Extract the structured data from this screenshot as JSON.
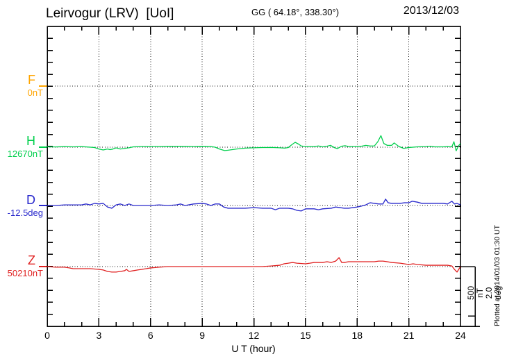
{
  "chart_data": {
    "type": "line",
    "title": "Leirvogur (LRV)  [UoI]",
    "coords": "GG ( 64.18°, 338.30°)",
    "date": "2013/12/03",
    "xlabel": "U T (hour)",
    "x_range": [
      0,
      24
    ],
    "x_ticks": [
      0,
      3,
      6,
      9,
      12,
      15,
      18,
      21,
      24
    ],
    "grid": "dotted vertical every 3 h, dotted horizontal at each component baseline",
    "scale": {
      "nT_per_div": 500,
      "deg_per_div": 2.0,
      "bar_label": "500 nT\n2.0 deg"
    },
    "footer": "Plotted at 2014/01/03 01:30 UT",
    "series": [
      {
        "name": "F",
        "unit": "nT",
        "base_value": "0nT",
        "color": "#FFA500",
        "x": [],
        "y": []
      },
      {
        "name": "H",
        "unit": "nT",
        "base_value": "12670nT",
        "color": "#00CF4C",
        "x": [
          0,
          0.5,
          1,
          1.5,
          2,
          2.5,
          2.75,
          3,
          3.25,
          3.5,
          3.65,
          3.8,
          4,
          4.25,
          4.5,
          4.75,
          5,
          5.5,
          6,
          6.5,
          7,
          7.5,
          8,
          8.5,
          9,
          9.5,
          9.75,
          10,
          10.3,
          10.5,
          10.75,
          11,
          11.5,
          12,
          12.5,
          13,
          13.5,
          13.8,
          14,
          14.2,
          14.4,
          14.6,
          14.75,
          15,
          15.5,
          15.75,
          16,
          16.25,
          16.45,
          16.7,
          16.85,
          17.1,
          17.3,
          17.5,
          18,
          18.25,
          18.5,
          18.75,
          19,
          19.2,
          19.38,
          19.55,
          19.75,
          20,
          20.15,
          20.4,
          20.7,
          21,
          21.5,
          22,
          22.25,
          22.5,
          23,
          23.25,
          23.5,
          23.62,
          23.75,
          23.88,
          24
        ],
        "y": [
          3,
          2,
          5,
          3,
          5,
          0,
          -3,
          -15,
          -23,
          -15,
          -20,
          -16,
          -6,
          -15,
          -10,
          -5,
          3,
          5,
          5,
          5,
          6,
          6,
          6,
          5,
          6,
          5,
          0,
          -15,
          -28,
          -25,
          -20,
          -15,
          -8,
          -5,
          -3,
          -2,
          -5,
          -8,
          -3,
          20,
          40,
          25,
          10,
          5,
          5,
          10,
          3,
          8,
          15,
          -5,
          -12,
          8,
          12,
          5,
          5,
          8,
          15,
          10,
          10,
          45,
          95,
          30,
          15,
          15,
          35,
          8,
          -10,
          -3,
          3,
          5,
          8,
          3,
          3,
          5,
          3,
          45,
          -30,
          10,
          30
        ]
      },
      {
        "name": "D",
        "unit": "deg",
        "base_value": "-12.5deg",
        "color": "#2828CC",
        "x": [
          0,
          0.5,
          1,
          1.5,
          2,
          2.25,
          2.5,
          2.75,
          3,
          3.25,
          3.5,
          3.75,
          4,
          4.25,
          4.5,
          4.75,
          5,
          5.5,
          6,
          6.5,
          7,
          7.5,
          7.75,
          8,
          8.5,
          9,
          9.25,
          9.5,
          9.75,
          10,
          10.25,
          10.5,
          11,
          11.5,
          12,
          12.5,
          13,
          13.25,
          13.5,
          14,
          14.25,
          14.5,
          14.75,
          15,
          15.5,
          15.75,
          16,
          16.5,
          16.75,
          17,
          17.25,
          17.5,
          17.75,
          18,
          18.25,
          18.5,
          18.75,
          19,
          19.25,
          19.5,
          19.65,
          19.8,
          20,
          20.5,
          20.75,
          21,
          21.2,
          21.5,
          21.75,
          22,
          22.5,
          23,
          23.25,
          23.5,
          23.65,
          23.8,
          24
        ],
        "y": [
          0,
          0,
          0.02,
          0.02,
          0.02,
          0.05,
          0.02,
          0.07,
          0.05,
          0.07,
          -0.05,
          -0.09,
          0.02,
          0.05,
          0,
          0.05,
          0,
          0,
          0,
          0.02,
          0,
          0.02,
          0.05,
          0,
          0.05,
          0.07,
          0.05,
          0,
          0.05,
          0.05,
          -0.05,
          -0.09,
          -0.09,
          -0.09,
          -0.07,
          -0.09,
          -0.09,
          -0.14,
          -0.09,
          -0.09,
          -0.11,
          -0.16,
          -0.18,
          -0.11,
          -0.11,
          -0.14,
          -0.11,
          -0.09,
          -0.05,
          -0.07,
          -0.09,
          -0.09,
          -0.07,
          -0.05,
          -0.02,
          0.02,
          0.09,
          0.07,
          0.05,
          0.05,
          0.21,
          0.09,
          0.07,
          0.07,
          0.09,
          0.09,
          0.14,
          0.11,
          0.07,
          0.07,
          0.07,
          0.07,
          0.05,
          0.14,
          0.05,
          0.07,
          0.02
        ]
      },
      {
        "name": "Z",
        "unit": "nT",
        "base_value": "50210nT",
        "color": "#E02020",
        "x": [
          0,
          0.5,
          1,
          1.25,
          1.5,
          2,
          2.5,
          3,
          3.25,
          3.5,
          3.75,
          4,
          4.25,
          4.5,
          4.6,
          4.75,
          5,
          5.25,
          5.5,
          5.75,
          6,
          6.5,
          7,
          7.5,
          8,
          9,
          10,
          11,
          12,
          12.5,
          13,
          13.5,
          13.75,
          14,
          14.25,
          14.5,
          15,
          15.25,
          15.5,
          16,
          16.25,
          16.5,
          16.75,
          16.95,
          17.1,
          17.25,
          17.5,
          18,
          18.5,
          19,
          19.25,
          19.5,
          19.75,
          20,
          20.5,
          21,
          21.25,
          21.5,
          22,
          22.5,
          23,
          23.25,
          23.5,
          23.65,
          23.8,
          24
        ],
        "y": [
          0,
          -5,
          -5,
          -10,
          -17,
          -17,
          -17,
          -23,
          -28,
          -40,
          -45,
          -45,
          -40,
          -34,
          -23,
          -40,
          -34,
          -28,
          -23,
          -17,
          -11,
          -5,
          0,
          0,
          0,
          0,
          0,
          0,
          0,
          0,
          5,
          11,
          23,
          28,
          34,
          28,
          23,
          28,
          34,
          34,
          40,
          34,
          45,
          74,
          34,
          34,
          40,
          40,
          40,
          40,
          45,
          45,
          40,
          34,
          28,
          17,
          23,
          17,
          11,
          11,
          11,
          11,
          5,
          -23,
          -45,
          0
        ]
      }
    ]
  }
}
